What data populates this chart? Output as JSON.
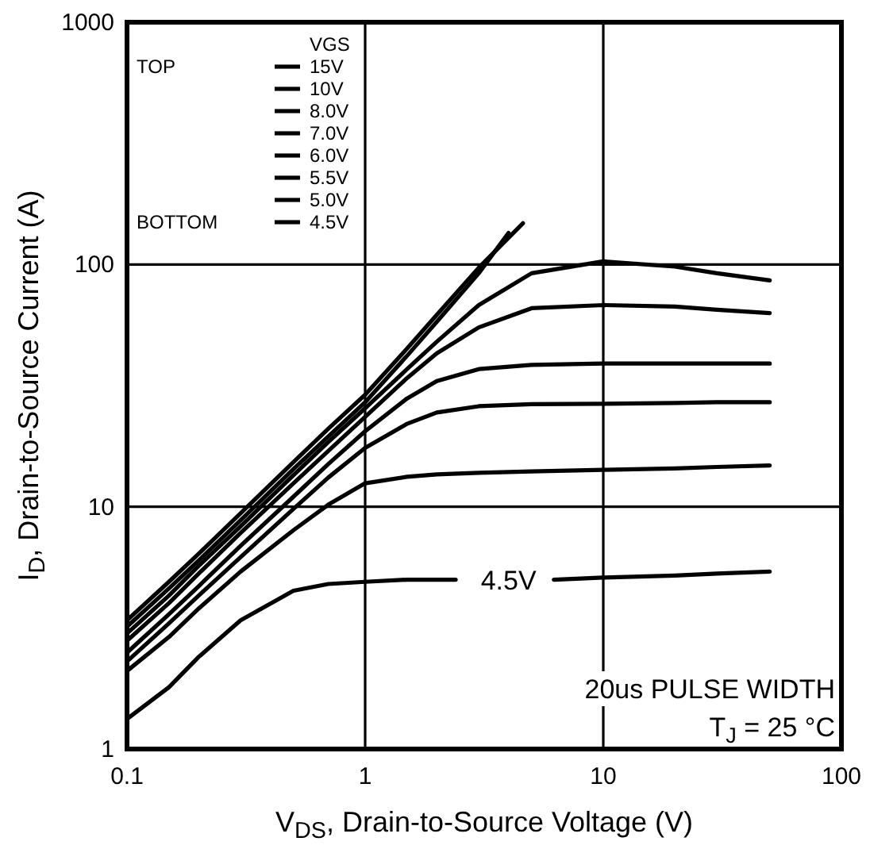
{
  "chart_data": {
    "type": "line",
    "xlabel": "V$_{DS}$, Drain-to-Source Voltage (V)",
    "ylabel": "I$_{D}$, Drain-to-Source Current (A)",
    "legend_title": "VGS",
    "legend": "top left",
    "log": "xy",
    "grid": true,
    "marker": "none",
    "line_style": "solid",
    "xlim": [
      0.1,
      100
    ],
    "ylim": [
      1,
      1000
    ],
    "xticks": [
      0.1,
      1,
      10,
      100
    ],
    "yticks": [
      1,
      10,
      100,
      1000
    ],
    "series": [
      {
        "name": "15V",
        "color": "#000000",
        "x": [
          0.1,
          0.15,
          0.2,
          0.3,
          0.5,
          0.7,
          1,
          1.5,
          2,
          3,
          4.6
        ],
        "values": [
          3.4,
          4.9,
          6.4,
          9.4,
          15.3,
          21,
          29,
          45,
          62,
          97,
          148
        ]
      },
      {
        "name": "10V",
        "color": "#000000",
        "x": [
          0.1,
          0.15,
          0.2,
          0.3,
          0.5,
          0.7,
          1,
          1.5,
          2,
          3,
          4
        ],
        "values": [
          3.2,
          4.6,
          6,
          8.8,
          14.3,
          19.5,
          27,
          42,
          58,
          92,
          135
        ]
      },
      {
        "name": "8.0V",
        "color": "#000000",
        "x": [
          0.1,
          0.15,
          0.2,
          0.3,
          0.5,
          0.7,
          1,
          1.5,
          2,
          3,
          5,
          10,
          20,
          30,
          50
        ],
        "values": [
          3,
          4.3,
          5.7,
          8.3,
          13.5,
          18.5,
          25.5,
          37,
          48,
          68,
          92,
          103,
          98,
          92,
          86
        ]
      },
      {
        "name": "7.0V",
        "color": "#000000",
        "x": [
          0.1,
          0.15,
          0.2,
          0.3,
          0.5,
          0.7,
          1,
          1.5,
          2,
          3,
          5,
          10,
          20,
          30,
          50
        ],
        "values": [
          2.8,
          4,
          5.3,
          7.8,
          12.5,
          17,
          23.5,
          34,
          43,
          55,
          66,
          68,
          67,
          65,
          63
        ]
      },
      {
        "name": "6.0V",
        "color": "#000000",
        "x": [
          0.1,
          0.15,
          0.2,
          0.3,
          0.5,
          0.7,
          1,
          1.5,
          2,
          3,
          5,
          10,
          20,
          30,
          50
        ],
        "values": [
          2.5,
          3.6,
          4.7,
          6.9,
          11,
          15,
          20.5,
          28,
          33,
          37,
          38.5,
          39,
          39,
          39,
          39
        ]
      },
      {
        "name": "5.5V",
        "color": "#000000",
        "x": [
          0.1,
          0.15,
          0.2,
          0.3,
          0.5,
          0.7,
          1,
          1.5,
          2,
          3,
          5,
          10,
          20,
          30,
          50
        ],
        "values": [
          2.3,
          3.3,
          4.3,
          6.2,
          9.8,
          13.2,
          17.5,
          22,
          24.5,
          26,
          26.5,
          26.6,
          26.8,
          27,
          27
        ]
      },
      {
        "name": "5.0V",
        "color": "#000000",
        "x": [
          0.1,
          0.15,
          0.2,
          0.3,
          0.5,
          0.7,
          1,
          1.5,
          2,
          3,
          5,
          10,
          20,
          30,
          50
        ],
        "values": [
          2.1,
          2.9,
          3.8,
          5.4,
          8,
          10.2,
          12.5,
          13.3,
          13.6,
          13.8,
          14,
          14.2,
          14.4,
          14.6,
          14.8
        ]
      },
      {
        "name": "4.5V",
        "color": "#000000",
        "x": [
          0.1,
          0.15,
          0.2,
          0.3,
          0.5,
          0.7,
          1,
          1.5,
          2,
          2.4,
          4,
          6.2,
          10,
          20,
          30,
          50
        ],
        "values": [
          1.33,
          1.8,
          2.4,
          3.4,
          4.5,
          4.8,
          4.9,
          5,
          5,
          5,
          null,
          5,
          5.1,
          5.2,
          5.3,
          5.4
        ]
      }
    ],
    "annotations": [
      "TOP",
      "BOTTOM",
      {
        "text": "4.5V",
        "x": 4,
        "y": 5
      },
      "20us PULSE WIDTH",
      "T$_{J}$ = 25 °C"
    ]
  }
}
